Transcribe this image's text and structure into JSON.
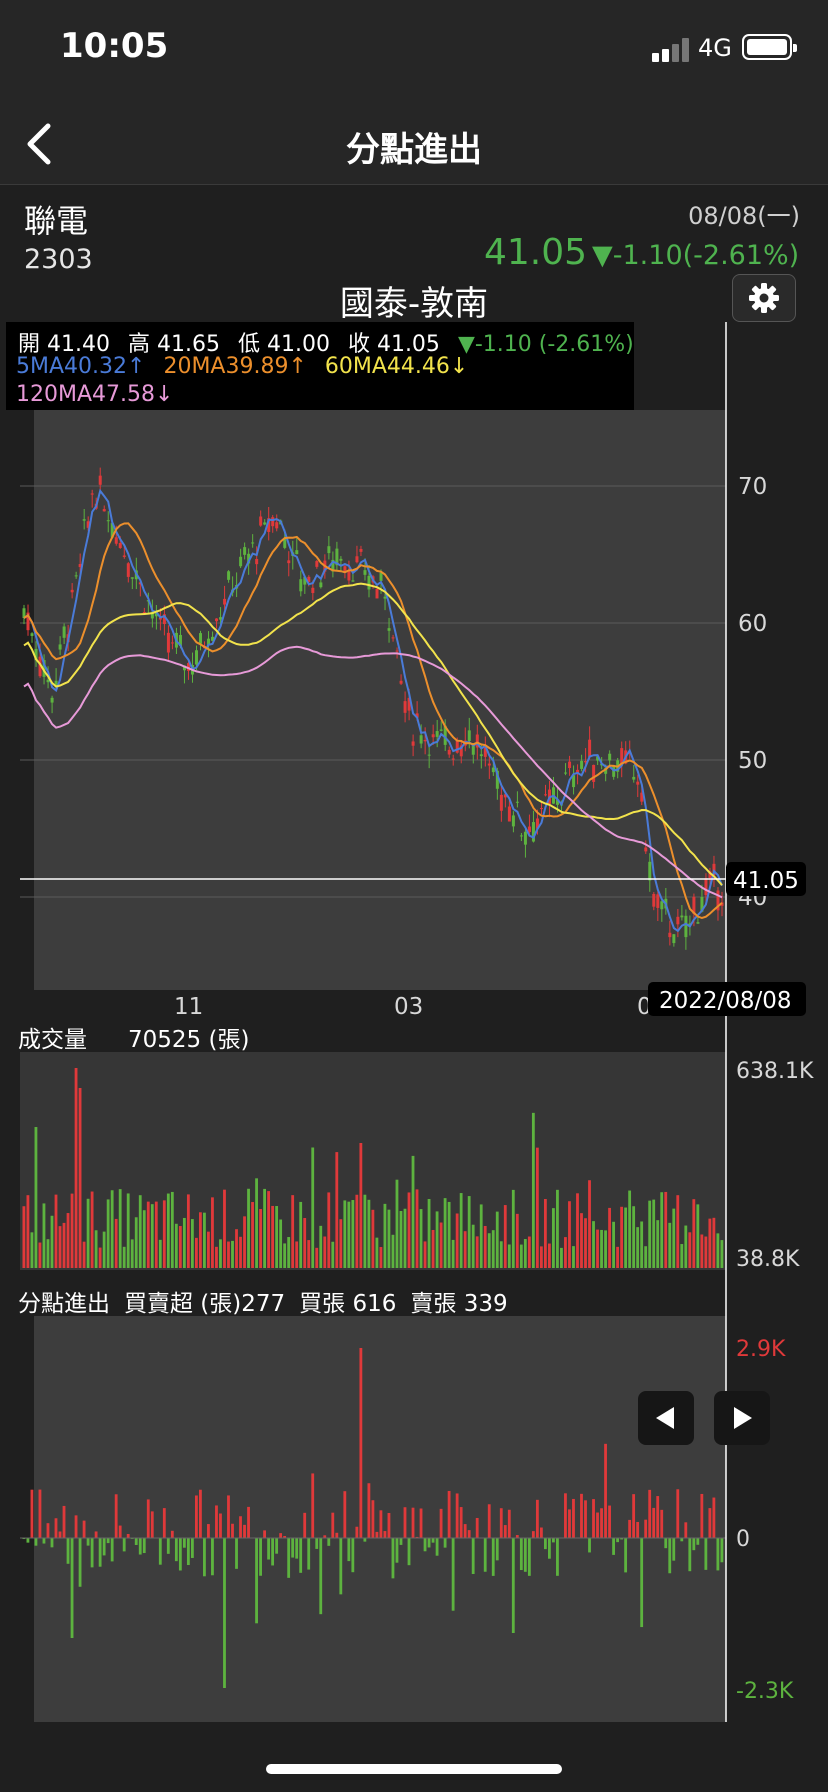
{
  "status": {
    "time": "10:05",
    "network": "4G"
  },
  "nav": {
    "title": "分點進出"
  },
  "stock": {
    "name": "聯電",
    "code": "2303",
    "date": "08/08(一)",
    "price": "41.05",
    "change": "▼-1.10(-2.61%)"
  },
  "broker": "國泰-敦南",
  "ohlc": {
    "open": "開 41.40",
    "high": "高 41.65",
    "low": "低 41.00",
    "close": "收 41.05",
    "change": "▼-1.10 (-2.61%)"
  },
  "ma": {
    "ma5": "5MA40.32↑",
    "ma20": "20MA39.89↑",
    "ma60": "60MA44.46↓",
    "ma120": "120MA47.58↓"
  },
  "colors": {
    "up": "#e0393a",
    "down": "#5db33f",
    "ma5": "#4a7bd8",
    "ma20": "#ec8f2c",
    "ma60": "#f2e34c",
    "ma120": "#e79ad8"
  },
  "price_axis": [
    "70",
    "60",
    "50",
    "40"
  ],
  "crosshair": {
    "price": "41.05",
    "date": "2022/08/08"
  },
  "month_labels": [
    "11",
    "03",
    "0"
  ],
  "volume": {
    "label": "成交量",
    "value": "70525 (張)",
    "max_label": "638.1K",
    "min_label": "38.8K"
  },
  "fendian": {
    "label": "分點進出",
    "net": "買賣超 (張)277",
    "buy": "買張 616",
    "sell": "賣張 339",
    "max_label": "2.9K",
    "zero_label": "0",
    "min_label": "-2.3K"
  },
  "icons": [
    "chevron-left-icon",
    "gear-icon",
    "triangle-left-icon",
    "triangle-right-icon"
  ]
}
